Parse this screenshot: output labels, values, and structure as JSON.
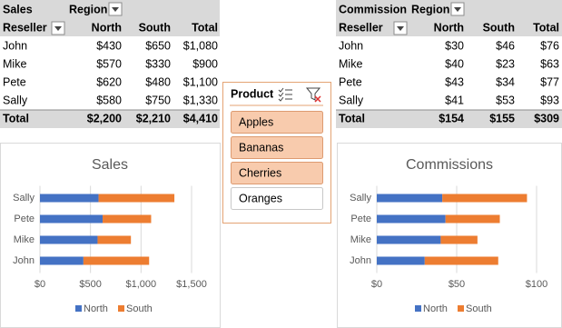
{
  "pivot_tables": [
    {
      "header": [
        "Sales",
        "Region"
      ],
      "columns": [
        "Reseller",
        "North",
        "South",
        "Total"
      ],
      "rows": [
        [
          "John",
          "$430",
          "$650",
          "$1,080"
        ],
        [
          "Mike",
          "$570",
          "$330",
          "$900"
        ],
        [
          "Pete",
          "$620",
          "$480",
          "$1,100"
        ],
        [
          "Sally",
          "$580",
          "$750",
          "$1,330"
        ]
      ],
      "total": [
        "Total",
        "$2,200",
        "$2,210",
        "$4,410"
      ]
    },
    {
      "header": [
        "Commission",
        "Region"
      ],
      "columns": [
        "Reseller",
        "North",
        "South",
        "Total"
      ],
      "rows": [
        [
          "John",
          "$30",
          "$46",
          "$76"
        ],
        [
          "Mike",
          "$40",
          "$23",
          "$63"
        ],
        [
          "Pete",
          "$43",
          "$34",
          "$77"
        ],
        [
          "Sally",
          "$41",
          "$53",
          "$93"
        ]
      ],
      "total": [
        "Total",
        "$154",
        "$155",
        "$309"
      ]
    }
  ],
  "slicer": {
    "title": "Product",
    "items": [
      {
        "label": "Apples",
        "selected": true
      },
      {
        "label": "Bananas",
        "selected": true
      },
      {
        "label": "Cherries",
        "selected": true
      },
      {
        "label": "Oranges",
        "selected": false
      }
    ]
  },
  "chart_data": [
    {
      "type": "bar",
      "orientation": "horizontal",
      "stacked": true,
      "title": "Sales",
      "categories": [
        "John",
        "Mike",
        "Pete",
        "Sally"
      ],
      "series": [
        {
          "name": "North",
          "color": "#4472c4",
          "values": [
            430,
            570,
            620,
            580
          ]
        },
        {
          "name": "South",
          "color": "#ed7d31",
          "values": [
            650,
            330,
            480,
            750
          ]
        }
      ],
      "xlim": [
        0,
        1500
      ],
      "xticks": [
        {
          "value": 0,
          "label": "$0"
        },
        {
          "value": 500,
          "label": "$500"
        },
        {
          "value": 1000,
          "label": "$1,000"
        },
        {
          "value": 1500,
          "label": "$1,500"
        }
      ],
      "grid": true,
      "legend": "bottom"
    },
    {
      "type": "bar",
      "orientation": "horizontal",
      "stacked": true,
      "title": "Commissions",
      "categories": [
        "John",
        "Mike",
        "Pete",
        "Sally"
      ],
      "series": [
        {
          "name": "North",
          "color": "#4472c4",
          "values": [
            30,
            40,
            43,
            41
          ]
        },
        {
          "name": "South",
          "color": "#ed7d31",
          "values": [
            46,
            23,
            34,
            53
          ]
        }
      ],
      "xlim": [
        0,
        100
      ],
      "xticks": [
        {
          "value": 0,
          "label": "$0"
        },
        {
          "value": 50,
          "label": "$50"
        },
        {
          "value": 100,
          "label": "$100"
        }
      ],
      "grid": true,
      "legend": "bottom"
    }
  ]
}
